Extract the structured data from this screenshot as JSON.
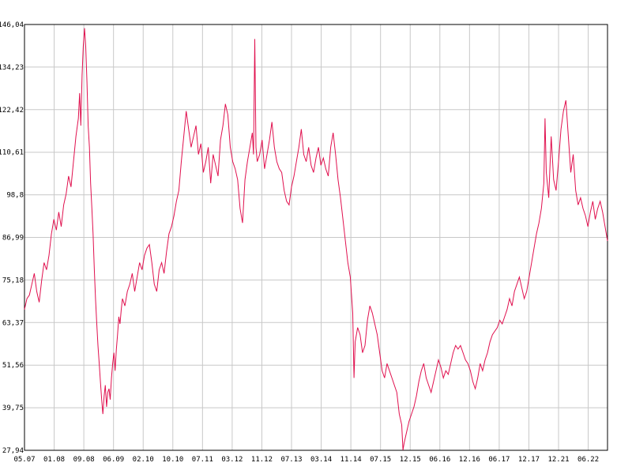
{
  "chart_data": {
    "type": "line",
    "title": "",
    "xlabel": "",
    "ylabel": "",
    "ylim": [
      27.94,
      146.04
    ],
    "grid": true,
    "legend": "none",
    "line_color": "#e0104e",
    "grid_color": "#c8c8c8",
    "y_ticks": [
      "27,94",
      "39,75",
      "51,56",
      "63,37",
      "75,18",
      "86,99",
      "98,8",
      "110,61",
      "122,42",
      "134,23",
      "146,04"
    ],
    "x_ticks": [
      "05.07",
      "01.08",
      "09.08",
      "06.09",
      "02.10",
      "10.10",
      "07.11",
      "03.12",
      "11.12",
      "07.13",
      "03.14",
      "11.14",
      "07.15",
      "12.15",
      "06.16",
      "12.16",
      "06.17",
      "12.17",
      "12.21",
      "06.22"
    ],
    "series": [
      {
        "values": [
          [
            0,
            67
          ],
          [
            2,
            70
          ],
          [
            4,
            71
          ],
          [
            6,
            74
          ],
          [
            8,
            77
          ],
          [
            10,
            72
          ],
          [
            12,
            69
          ],
          [
            14,
            75
          ],
          [
            16,
            80
          ],
          [
            18,
            78
          ],
          [
            20,
            82
          ],
          [
            22,
            88
          ],
          [
            24,
            92
          ],
          [
            26,
            89
          ],
          [
            28,
            94
          ],
          [
            30,
            90
          ],
          [
            32,
            96
          ],
          [
            34,
            99
          ],
          [
            36,
            104
          ],
          [
            38,
            101
          ],
          [
            40,
            108
          ],
          [
            42,
            115
          ],
          [
            44,
            120
          ],
          [
            45,
            127
          ],
          [
            46,
            118
          ],
          [
            47,
            132
          ],
          [
            48,
            140
          ],
          [
            49,
            145
          ],
          [
            50,
            140
          ],
          [
            51,
            130
          ],
          [
            52,
            118
          ],
          [
            53,
            112
          ],
          [
            54,
            102
          ],
          [
            55,
            95
          ],
          [
            56,
            88
          ],
          [
            57,
            78
          ],
          [
            58,
            70
          ],
          [
            59,
            63
          ],
          [
            60,
            57
          ],
          [
            61,
            52
          ],
          [
            62,
            47
          ],
          [
            63,
            42
          ],
          [
            64,
            38
          ],
          [
            65,
            43
          ],
          [
            66,
            46
          ],
          [
            67,
            40
          ],
          [
            68,
            44
          ],
          [
            69,
            45
          ],
          [
            70,
            42
          ],
          [
            71,
            48
          ],
          [
            72,
            52
          ],
          [
            73,
            55
          ],
          [
            74,
            50
          ],
          [
            75,
            56
          ],
          [
            76,
            60
          ],
          [
            77,
            65
          ],
          [
            78,
            63
          ],
          [
            79,
            67
          ],
          [
            80,
            70
          ],
          [
            82,
            68
          ],
          [
            84,
            72
          ],
          [
            86,
            74
          ],
          [
            88,
            77
          ],
          [
            90,
            72
          ],
          [
            92,
            76
          ],
          [
            94,
            80
          ],
          [
            96,
            78
          ],
          [
            98,
            82
          ],
          [
            100,
            84
          ],
          [
            102,
            85
          ],
          [
            104,
            80
          ],
          [
            106,
            74
          ],
          [
            108,
            72
          ],
          [
            110,
            78
          ],
          [
            112,
            80
          ],
          [
            114,
            77
          ],
          [
            116,
            83
          ],
          [
            118,
            88
          ],
          [
            120,
            90
          ],
          [
            122,
            93
          ],
          [
            124,
            97
          ],
          [
            126,
            100
          ],
          [
            128,
            108
          ],
          [
            130,
            115
          ],
          [
            132,
            122
          ],
          [
            134,
            117
          ],
          [
            136,
            112
          ],
          [
            138,
            115
          ],
          [
            140,
            118
          ],
          [
            142,
            110
          ],
          [
            144,
            113
          ],
          [
            146,
            105
          ],
          [
            148,
            108
          ],
          [
            150,
            112
          ],
          [
            152,
            102
          ],
          [
            154,
            110
          ],
          [
            156,
            107
          ],
          [
            158,
            104
          ],
          [
            160,
            114
          ],
          [
            162,
            118
          ],
          [
            164,
            124
          ],
          [
            166,
            121
          ],
          [
            168,
            112
          ],
          [
            170,
            108
          ],
          [
            172,
            106
          ],
          [
            174,
            103
          ],
          [
            176,
            95
          ],
          [
            178,
            91
          ],
          [
            180,
            103
          ],
          [
            182,
            108
          ],
          [
            184,
            112
          ],
          [
            186,
            116
          ],
          [
            187,
            110
          ],
          [
            188,
            142
          ],
          [
            189,
            112
          ],
          [
            190,
            108
          ],
          [
            192,
            110
          ],
          [
            194,
            114
          ],
          [
            196,
            106
          ],
          [
            198,
            110
          ],
          [
            200,
            114
          ],
          [
            202,
            119
          ],
          [
            204,
            112
          ],
          [
            206,
            108
          ],
          [
            208,
            106
          ],
          [
            210,
            105
          ],
          [
            212,
            100
          ],
          [
            214,
            97
          ],
          [
            216,
            96
          ],
          [
            218,
            101
          ],
          [
            220,
            104
          ],
          [
            222,
            108
          ],
          [
            224,
            112
          ],
          [
            226,
            117
          ],
          [
            228,
            110
          ],
          [
            230,
            108
          ],
          [
            232,
            112
          ],
          [
            234,
            107
          ],
          [
            236,
            105
          ],
          [
            238,
            109
          ],
          [
            240,
            112
          ],
          [
            242,
            107
          ],
          [
            244,
            109
          ],
          [
            246,
            106
          ],
          [
            248,
            104
          ],
          [
            250,
            112
          ],
          [
            252,
            116
          ],
          [
            254,
            110
          ],
          [
            256,
            103
          ],
          [
            258,
            98
          ],
          [
            260,
            92
          ],
          [
            262,
            86
          ],
          [
            264,
            80
          ],
          [
            266,
            76
          ],
          [
            268,
            66
          ],
          [
            269,
            48
          ],
          [
            270,
            58
          ],
          [
            272,
            62
          ],
          [
            274,
            60
          ],
          [
            276,
            55
          ],
          [
            278,
            57
          ],
          [
            280,
            64
          ],
          [
            282,
            68
          ],
          [
            284,
            66
          ],
          [
            286,
            63
          ],
          [
            288,
            60
          ],
          [
            290,
            55
          ],
          [
            292,
            50
          ],
          [
            294,
            48
          ],
          [
            296,
            52
          ],
          [
            298,
            50
          ],
          [
            300,
            48
          ],
          [
            302,
            46
          ],
          [
            304,
            44
          ],
          [
            306,
            38
          ],
          [
            308,
            35
          ],
          [
            309,
            28
          ],
          [
            310,
            30
          ],
          [
            312,
            33
          ],
          [
            314,
            36
          ],
          [
            316,
            38
          ],
          [
            318,
            40
          ],
          [
            320,
            43
          ],
          [
            322,
            47
          ],
          [
            324,
            50
          ],
          [
            326,
            52
          ],
          [
            328,
            48
          ],
          [
            330,
            46
          ],
          [
            332,
            44
          ],
          [
            334,
            47
          ],
          [
            336,
            50
          ],
          [
            338,
            53
          ],
          [
            340,
            51
          ],
          [
            342,
            48
          ],
          [
            344,
            50
          ],
          [
            346,
            49
          ],
          [
            348,
            52
          ],
          [
            350,
            55
          ],
          [
            352,
            57
          ],
          [
            354,
            56
          ],
          [
            356,
            57
          ],
          [
            358,
            55
          ],
          [
            360,
            53
          ],
          [
            362,
            52
          ],
          [
            364,
            50
          ],
          [
            366,
            47
          ],
          [
            368,
            45
          ],
          [
            370,
            48
          ],
          [
            372,
            52
          ],
          [
            374,
            50
          ],
          [
            376,
            53
          ],
          [
            378,
            55
          ],
          [
            380,
            58
          ],
          [
            382,
            60
          ],
          [
            384,
            61
          ],
          [
            386,
            62
          ],
          [
            388,
            64
          ],
          [
            390,
            63
          ],
          [
            392,
            65
          ],
          [
            394,
            67
          ],
          [
            396,
            70
          ],
          [
            398,
            68
          ],
          [
            400,
            72
          ],
          [
            402,
            74
          ],
          [
            404,
            76
          ],
          [
            406,
            73
          ],
          [
            408,
            70
          ],
          [
            410,
            72
          ],
          [
            412,
            76
          ],
          [
            414,
            80
          ],
          [
            416,
            84
          ],
          [
            418,
            88
          ],
          [
            420,
            91
          ],
          [
            422,
            95
          ],
          [
            424,
            102
          ],
          [
            425,
            120
          ],
          [
            426,
            105
          ],
          [
            428,
            98
          ],
          [
            430,
            115
          ],
          [
            432,
            103
          ],
          [
            434,
            100
          ],
          [
            436,
            108
          ],
          [
            438,
            117
          ],
          [
            440,
            122
          ],
          [
            442,
            125
          ],
          [
            444,
            115
          ],
          [
            446,
            105
          ],
          [
            448,
            110
          ],
          [
            450,
            100
          ],
          [
            452,
            96
          ],
          [
            454,
            98
          ],
          [
            456,
            95
          ],
          [
            458,
            93
          ],
          [
            460,
            90
          ],
          [
            462,
            94
          ],
          [
            464,
            97
          ],
          [
            466,
            92
          ],
          [
            468,
            95
          ],
          [
            470,
            97
          ],
          [
            472,
            94
          ],
          [
            474,
            90
          ],
          [
            476,
            86
          ]
        ]
      }
    ]
  }
}
